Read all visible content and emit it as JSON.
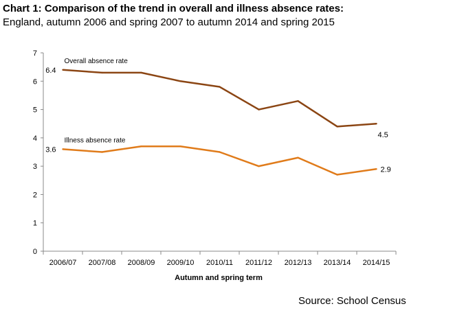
{
  "header": {
    "title": "Chart 1: Comparison of the trend in overall and illness absence rates:",
    "subtitle": "England, autumn 2006 and spring 2007 to autumn 2014 and spring 2015"
  },
  "footer": {
    "source": "Source: School Census"
  },
  "chart_data": {
    "type": "line",
    "title": "Chart 1: Comparison of the trend in overall and illness absence rates:",
    "subtitle": "England, autumn 2006 and spring 2007 to autumn 2014 and spring 2015",
    "xlabel": "Autumn and spring term",
    "ylabel": "",
    "categories": [
      "2006/07",
      "2007/08",
      "2008/09",
      "2009/10",
      "2010/11",
      "2011/12",
      "2012/13",
      "2013/14",
      "2014/15"
    ],
    "ylim": [
      0,
      7
    ],
    "yticks": [
      0,
      1,
      2,
      3,
      4,
      5,
      6,
      7
    ],
    "grid": false,
    "legend": "none",
    "series": [
      {
        "name": "Overall absence rate",
        "color": "#8B4513",
        "values": [
          6.4,
          6.3,
          6.3,
          6.0,
          5.8,
          5.0,
          5.3,
          4.4,
          4.5
        ],
        "start_label": "6.4",
        "end_label": "4.5"
      },
      {
        "name": "Illness absence rate",
        "color": "#E07B1A",
        "values": [
          3.6,
          3.5,
          3.7,
          3.7,
          3.5,
          3.0,
          3.3,
          2.7,
          2.9
        ],
        "start_label": "3.6",
        "end_label": "2.9"
      }
    ]
  }
}
